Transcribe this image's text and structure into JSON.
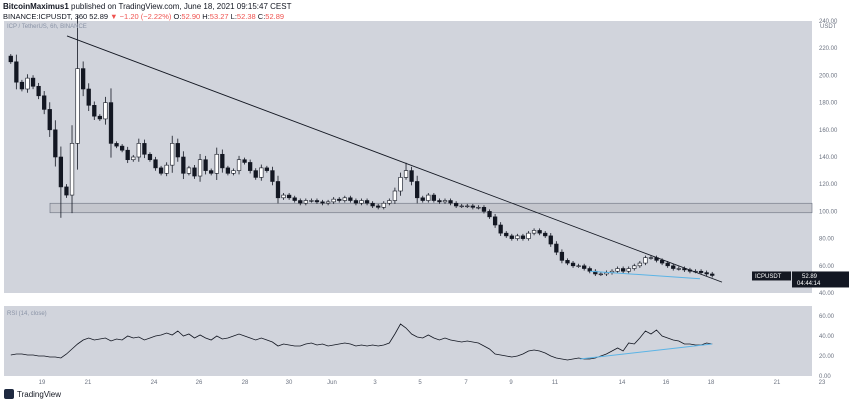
{
  "header": {
    "author": "BitcoinMaximus1",
    "published_text": "published on TradingView.com, June 18, 2021 09:15:47 CEST",
    "symbol": "BINANCE:ICPUSDT",
    "interval": "360",
    "last": "52.89",
    "change": "▼ −1.20 (−2.22%)",
    "ohlc": {
      "o_label": "O:",
      "o": "52.90",
      "h_label": "H:",
      "h": "53.27",
      "l_label": "L:",
      "l": "52.38",
      "c_label": "C:",
      "c": "52.89"
    }
  },
  "main_pane": {
    "label": "ICP / TetherUS, 6h, BINANCE",
    "currency": "USDT",
    "price_tag": "52.89",
    "symbol_tag": "ICPUSDT",
    "countdown": "04:44:14"
  },
  "rsi_pane": {
    "label": "RSI (14, close)"
  },
  "footer": {
    "brand": "TradingView"
  },
  "colors": {
    "pane_bg": "#d1d4dc",
    "candle_up": "#ffffff",
    "candle_down": "#131722",
    "trendline": "#131722",
    "divergence": "#5bb4e6",
    "support_zone": "#c4c6cd"
  },
  "chart_data": [
    {
      "type": "candlestick",
      "title": "ICP / TetherUS, 6h, BINANCE",
      "y_unit": "USDT",
      "ylim": [
        40,
        240
      ],
      "y_ticks": [
        40,
        60,
        80,
        100,
        120,
        140,
        160,
        180,
        200,
        220,
        240
      ],
      "x_tick_labels": [
        "19",
        "21",
        "24",
        "26",
        "28",
        "30",
        "Jun",
        "3",
        "5",
        "7",
        "9",
        "11",
        "14",
        "16",
        "18",
        "21",
        "23"
      ],
      "close_path": [
        210,
        195,
        190,
        198,
        192,
        185,
        175,
        160,
        140,
        118,
        112,
        150,
        205,
        190,
        178,
        170,
        168,
        180,
        150,
        148,
        145,
        138,
        140,
        150,
        142,
        138,
        132,
        128,
        134,
        150,
        140,
        128,
        132,
        126,
        138,
        130,
        128,
        142,
        132,
        128,
        130,
        138,
        136,
        130,
        125,
        132,
        130,
        122,
        110,
        112,
        110,
        108,
        106,
        108,
        108,
        107,
        106,
        107,
        109,
        108,
        110,
        108,
        106,
        108,
        106,
        104,
        103,
        106,
        108,
        115,
        125,
        130,
        122,
        110,
        108,
        112,
        108,
        107,
        108,
        106,
        104,
        104,
        104,
        103,
        103,
        100,
        96,
        90,
        84,
        82,
        80,
        82,
        80,
        84,
        86,
        84,
        82,
        76,
        70,
        64,
        62,
        60,
        60,
        58,
        56,
        54,
        54,
        55,
        56,
        58,
        56,
        58,
        60,
        62,
        66,
        66,
        64,
        62,
        60,
        58,
        58,
        57,
        56,
        56,
        55,
        54,
        52.89
      ],
      "support_zone": [
        99,
        106
      ],
      "trendline": {
        "from": [
          "May 20",
          229
        ],
        "to": [
          "Jun 18",
          48
        ]
      },
      "last_price": 52.89
    },
    {
      "type": "line",
      "title": "RSI (14, close)",
      "ylim": [
        0,
        70
      ],
      "y_ticks": [
        0,
        20,
        40,
        60
      ],
      "values": [
        21,
        22,
        22,
        21,
        21,
        20,
        20,
        19,
        19,
        18,
        22,
        27,
        32,
        36,
        38,
        36,
        37,
        38,
        35,
        37,
        36,
        40,
        38,
        39,
        36,
        38,
        40,
        41,
        43,
        41,
        45,
        40,
        42,
        38,
        41,
        38,
        36,
        40,
        37,
        38,
        40,
        42,
        40,
        38,
        36,
        38,
        36,
        34,
        30,
        32,
        31,
        30,
        30,
        32,
        33,
        31,
        32,
        30,
        31,
        32,
        33,
        32,
        30,
        31,
        30,
        31,
        30,
        31,
        33,
        42,
        52,
        48,
        42,
        39,
        38,
        41,
        38,
        36,
        38,
        36,
        35,
        34,
        35,
        34,
        33,
        30,
        27,
        22,
        21,
        20,
        19,
        20,
        22,
        25,
        26,
        25,
        23,
        20,
        18,
        17,
        16,
        17,
        18,
        17,
        17,
        18,
        20,
        22,
        25,
        28,
        25,
        33,
        32,
        38,
        45,
        42,
        46,
        40,
        38,
        36,
        35,
        32,
        32,
        31,
        31,
        33,
        32
      ],
      "divergence": {
        "from": [
          "Jun 12",
          17
        ],
        "to": [
          "Jun 18",
          32
        ]
      }
    }
  ]
}
